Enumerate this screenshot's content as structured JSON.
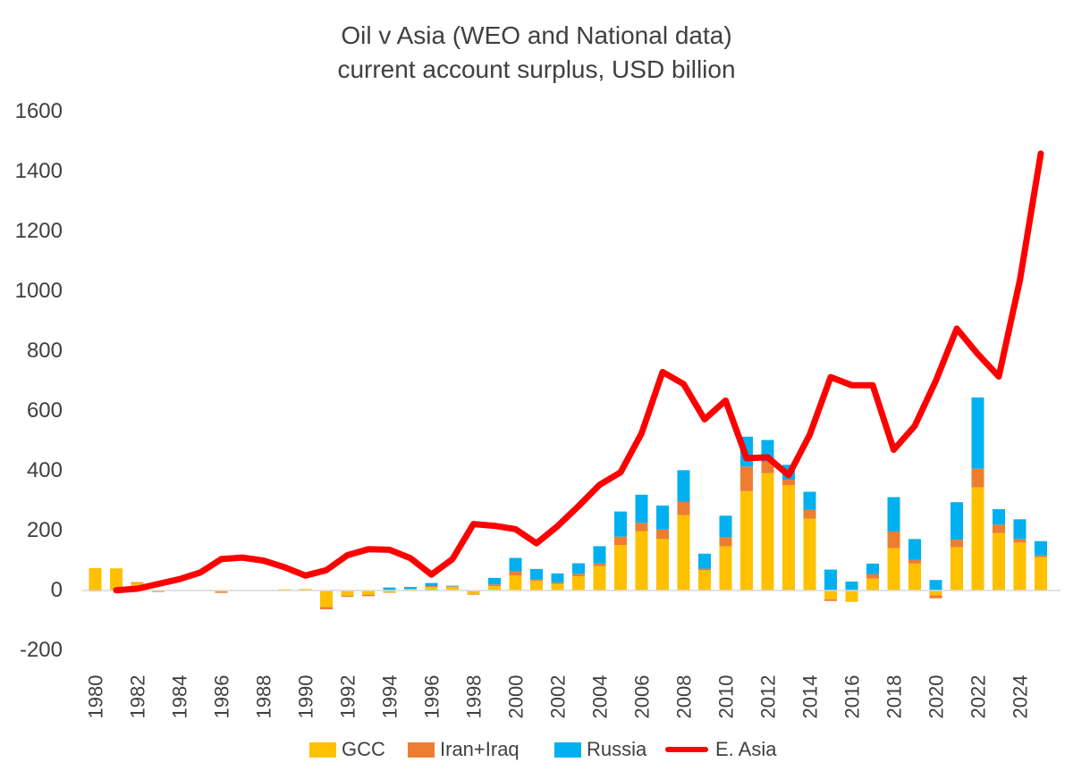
{
  "chart_data": {
    "type": "bar+line",
    "title": "Oil v Asia (WEO and National data)",
    "subtitle": "current account surplus, USD billion",
    "xlabel": "",
    "ylabel": "",
    "ylim": [
      -200,
      1600
    ],
    "yticks": [
      "-200",
      "0",
      "200",
      "400",
      "600",
      "800",
      "1000",
      "1200",
      "1400",
      "1600"
    ],
    "ytick_values": [
      -200,
      0,
      200,
      400,
      600,
      800,
      1000,
      1200,
      1400,
      1600
    ],
    "xticks": [
      "1980",
      "1982",
      "1984",
      "1986",
      "1988",
      "1990",
      "1992",
      "1994",
      "1996",
      "1998",
      "2000",
      "2002",
      "2004",
      "2006",
      "2008",
      "2010",
      "2012",
      "2014",
      "2016",
      "2018",
      "2020",
      "2022",
      "2024"
    ],
    "grid": false,
    "legend_position": "bottom",
    "categories": [
      1980,
      1981,
      1982,
      1983,
      1984,
      1985,
      1986,
      1987,
      1988,
      1989,
      1990,
      1991,
      1992,
      1993,
      1994,
      1995,
      1996,
      1997,
      1998,
      1999,
      2000,
      2001,
      2002,
      2003,
      2004,
      2005,
      2006,
      2007,
      2008,
      2009,
      2010,
      2011,
      2012,
      2013,
      2014,
      2015,
      2016,
      2017,
      2018,
      2019,
      2020,
      2021,
      2022,
      2023,
      2024,
      2025
    ],
    "series": [
      {
        "name": "GCC",
        "type": "stacked-bar",
        "color": "#FFC000",
        "values": [
          75,
          74,
          25,
          -3,
          0,
          0,
          -4,
          0,
          0,
          4,
          5,
          -55,
          -18,
          -14,
          -6,
          5,
          12,
          12,
          -12,
          15,
          50,
          32,
          22,
          48,
          82,
          152,
          198,
          172,
          252,
          68,
          148,
          332,
          392,
          352,
          240,
          -30,
          -38,
          40,
          142,
          90,
          -16,
          145,
          345,
          192,
          160,
          112
        ]
      },
      {
        "name": "Iran+Iraq",
        "type": "stacked-bar",
        "color": "#ED7D31",
        "values": [
          -3,
          0,
          3,
          -2,
          0,
          0,
          -4,
          0,
          0,
          0,
          0,
          -8,
          -3,
          -5,
          -1,
          0,
          3,
          2,
          -2,
          5,
          14,
          5,
          5,
          8,
          8,
          28,
          28,
          32,
          45,
          5,
          30,
          82,
          38,
          18,
          30,
          -5,
          0,
          15,
          55,
          12,
          -10,
          25,
          62,
          28,
          12,
          5
        ]
      },
      {
        "name": "Russia",
        "type": "stacked-bar",
        "color": "#00B0F0",
        "values": [
          0,
          0,
          0,
          0,
          0,
          0,
          0,
          0,
          0,
          0,
          0,
          0,
          0,
          0,
          10,
          7,
          10,
          2,
          0,
          22,
          45,
          35,
          30,
          35,
          58,
          84,
          94,
          80,
          105,
          50,
          72,
          100,
          73,
          50,
          60,
          70,
          30,
          35,
          115,
          70,
          35,
          125,
          238,
          52,
          66,
          48
        ]
      },
      {
        "name": "E. Asia",
        "type": "line",
        "color": "#FF0000",
        "values": [
          null,
          1,
          6,
          22,
          38,
          60,
          105,
          110,
          100,
          78,
          50,
          68,
          118,
          138,
          136,
          108,
          53,
          105,
          222,
          216,
          205,
          158,
          215,
          282,
          353,
          395,
          525,
          730,
          690,
          572,
          635,
          442,
          445,
          385,
          520,
          713,
          686,
          686,
          470,
          550,
          700,
          875,
          790,
          715,
          1035,
          1460
        ]
      }
    ]
  }
}
